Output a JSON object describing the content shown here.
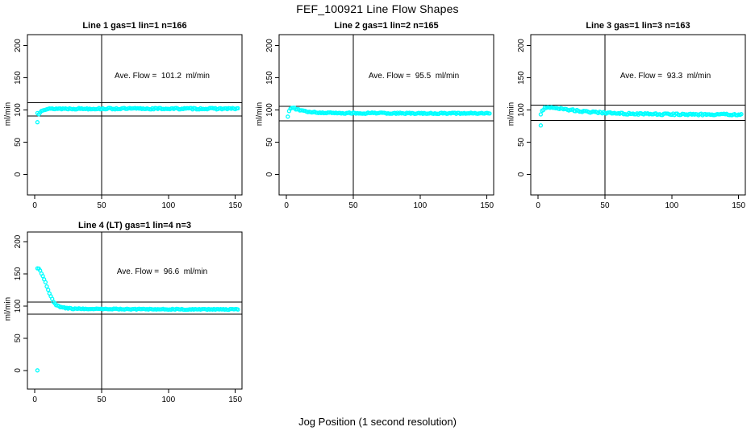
{
  "figure": {
    "title": "FEF_100921  Line Flow Shapes",
    "xlabel": "Jog Position (1 second resolution)",
    "ylabel": "ml/min",
    "marker_color": "#00FFFF",
    "line_color": "#000000",
    "background": "#FFFFFF"
  },
  "chart_data": [
    {
      "type": "scatter",
      "title": "Line 1 gas=1 lin=1 n=166",
      "n": 166,
      "ave_flow": 101.2,
      "ave_flow_text": "Ave. Flow =  101.2  ml/min",
      "xlim": [
        -5.5,
        155
      ],
      "ylim": [
        -32,
        217
      ],
      "x_ticks": [
        0,
        50,
        100,
        150
      ],
      "y_ticks": [
        0,
        50,
        100,
        150,
        200
      ],
      "hlines": [
        111.3,
        90.8
      ],
      "vline": 50,
      "x_start": 2,
      "x_end": 152,
      "jitter": 1.1,
      "profile": [
        [
          2,
          95
        ],
        [
          3,
          93.5
        ],
        [
          4,
          97
        ],
        [
          5,
          99.5
        ],
        [
          7,
          101
        ],
        [
          10,
          101.5
        ],
        [
          15,
          102
        ],
        [
          152,
          102
        ]
      ],
      "outliers": [
        [
          2,
          81
        ]
      ]
    },
    {
      "type": "scatter",
      "title": "Line 2 gas=1 lin=2 n=165",
      "n": 165,
      "ave_flow": 95.5,
      "ave_flow_text": "Ave. Flow =  95.5  ml/min",
      "xlim": [
        -5.5,
        155
      ],
      "ylim": [
        -32,
        217
      ],
      "x_ticks": [
        0,
        50,
        100,
        150
      ],
      "y_ticks": [
        0,
        50,
        100,
        150,
        200
      ],
      "hlines": [
        105.4,
        83.0
      ],
      "vline": 50,
      "x_start": 1,
      "x_end": 152,
      "jitter": 1.0,
      "profile": [
        [
          1,
          90
        ],
        [
          2,
          98
        ],
        [
          3,
          102
        ],
        [
          4,
          103.5
        ],
        [
          6,
          102.5
        ],
        [
          8,
          101
        ],
        [
          12,
          98.5
        ],
        [
          16,
          97
        ],
        [
          22,
          96
        ],
        [
          30,
          95.3
        ],
        [
          60,
          95
        ],
        [
          152,
          94.7
        ]
      ],
      "outliers": []
    },
    {
      "type": "scatter",
      "title": "Line 3 gas=1 lin=3 n=163",
      "n": 163,
      "ave_flow": 93.3,
      "ave_flow_text": "Ave. Flow =  93.3  ml/min",
      "xlim": [
        -5.5,
        155
      ],
      "ylim": [
        -32,
        217
      ],
      "x_ticks": [
        0,
        50,
        100,
        150
      ],
      "y_ticks": [
        0,
        50,
        100,
        150,
        200
      ],
      "hlines": [
        107.5,
        83.5
      ],
      "vline": 50,
      "x_start": 2,
      "x_end": 152,
      "jitter": 1.2,
      "profile": [
        [
          2,
          93
        ],
        [
          3,
          99
        ],
        [
          5,
          103
        ],
        [
          8,
          104.5
        ],
        [
          12,
          103.5
        ],
        [
          18,
          101.5
        ],
        [
          25,
          100
        ],
        [
          35,
          97.5
        ],
        [
          50,
          95.5
        ],
        [
          70,
          94
        ],
        [
          100,
          93.3
        ],
        [
          152,
          92.8
        ]
      ],
      "outliers": [
        [
          2,
          76
        ]
      ]
    },
    {
      "type": "scatter",
      "title": "Line 4 (LT) gas=1 lin=4 n=3",
      "n": 3,
      "ave_flow": 96.6,
      "ave_flow_text": "Ave. Flow =  96.6  ml/min",
      "xlim": [
        -5.5,
        155
      ],
      "ylim": [
        -29,
        215
      ],
      "x_ticks": [
        0,
        50,
        100,
        150
      ],
      "y_ticks": [
        0,
        50,
        100,
        150,
        200
      ],
      "hlines": [
        106.3,
        87.5
      ],
      "vline": 50,
      "x_start": 2,
      "x_end": 152,
      "jitter": 0.7,
      "profile": [
        [
          2,
          159
        ],
        [
          3,
          157.5
        ],
        [
          4,
          155
        ],
        [
          5,
          151
        ],
        [
          6,
          146.5
        ],
        [
          7,
          141.5
        ],
        [
          8,
          136.5
        ],
        [
          9,
          131
        ],
        [
          10,
          125.5
        ],
        [
          11,
          120
        ],
        [
          12,
          115
        ],
        [
          13,
          110.5
        ],
        [
          14,
          106.5
        ],
        [
          15,
          103.5
        ],
        [
          16,
          101.5
        ],
        [
          18,
          99.5
        ],
        [
          20,
          98
        ],
        [
          23,
          97
        ],
        [
          26,
          96.3
        ],
        [
          30,
          95.8
        ],
        [
          50,
          95.3
        ],
        [
          100,
          95
        ],
        [
          152,
          94.8
        ]
      ],
      "outliers": [
        [
          2,
          0
        ]
      ]
    }
  ]
}
